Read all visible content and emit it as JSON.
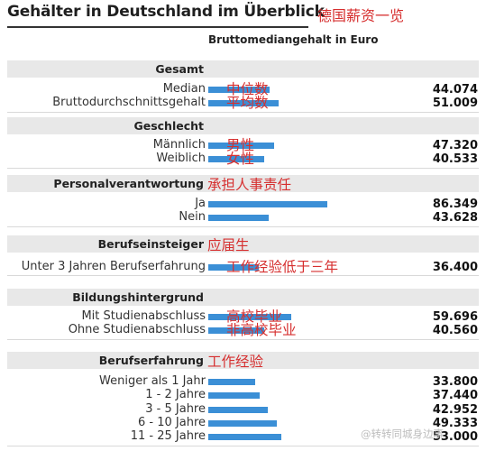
{
  "title": "Gehälter in Deutschland im Überblick",
  "title_note": "德国薪资一览",
  "watermark": "@转转同城身边事",
  "chart_data": {
    "type": "bar",
    "orientation": "horizontal",
    "title": "Gehälter in Deutschland im Überblick",
    "subtitle": "Bruttomediangehalt in Euro",
    "xlim": [
      0,
      150000
    ],
    "grid": false,
    "legend": "none",
    "bar_color": "#3b8fd6",
    "note_color": "#d62f2f",
    "groups": [
      {
        "heading": "Gesamt",
        "note": "",
        "rows": [
          {
            "label": "Median",
            "value": 44074,
            "value_text": "44.074",
            "note": "中位数"
          },
          {
            "label": "Bruttodurchschnittsgehalt",
            "value": 51009,
            "value_text": "51.009",
            "note": "平均数"
          }
        ]
      },
      {
        "heading": "Geschlecht",
        "note": "",
        "rows": [
          {
            "label": "Männlich",
            "value": 47320,
            "value_text": "47.320",
            "note": "男性"
          },
          {
            "label": "Weiblich",
            "value": 40533,
            "value_text": "40.533",
            "note": "女性"
          }
        ]
      },
      {
        "heading": "Personalverantwortung",
        "note": "承担人事责任",
        "rows": [
          {
            "label": "Ja",
            "value": 86349,
            "value_text": "86.349",
            "note": ""
          },
          {
            "label": "Nein",
            "value": 43628,
            "value_text": "43.628",
            "note": ""
          }
        ]
      },
      {
        "heading": "Berufseinsteiger",
        "note": "应届生",
        "rows": [
          {
            "label": "Unter 3 Jahren Berufserfahrung",
            "value": 36400,
            "value_text": "36.400",
            "note": "工作经验低于三年"
          }
        ]
      },
      {
        "heading": "Bildungshintergrund",
        "note": "",
        "rows": [
          {
            "label": "Mit Studienabschluss",
            "value": 59696,
            "value_text": "59.696",
            "note": "高校毕业"
          },
          {
            "label": "Ohne Studienabschluss",
            "value": 40560,
            "value_text": "40.560",
            "note": "非高校毕业"
          }
        ]
      },
      {
        "heading": "Berufserfahrung",
        "note": "工作经验",
        "rows": [
          {
            "label": "Weniger als 1 Jahr",
            "value": 33800,
            "value_text": "33.800",
            "note": ""
          },
          {
            "label": "1 - 2 Jahre",
            "value": 37440,
            "value_text": "37.440",
            "note": ""
          },
          {
            "label": "3 - 5 Jahre",
            "value": 42952,
            "value_text": "42.952",
            "note": ""
          },
          {
            "label": "6 - 10 Jahre",
            "value": 49333,
            "value_text": "49.333",
            "note": ""
          },
          {
            "label": "11 - 25 Jahre",
            "value": 53000,
            "value_text": "53.000",
            "note": ""
          }
        ]
      }
    ]
  }
}
